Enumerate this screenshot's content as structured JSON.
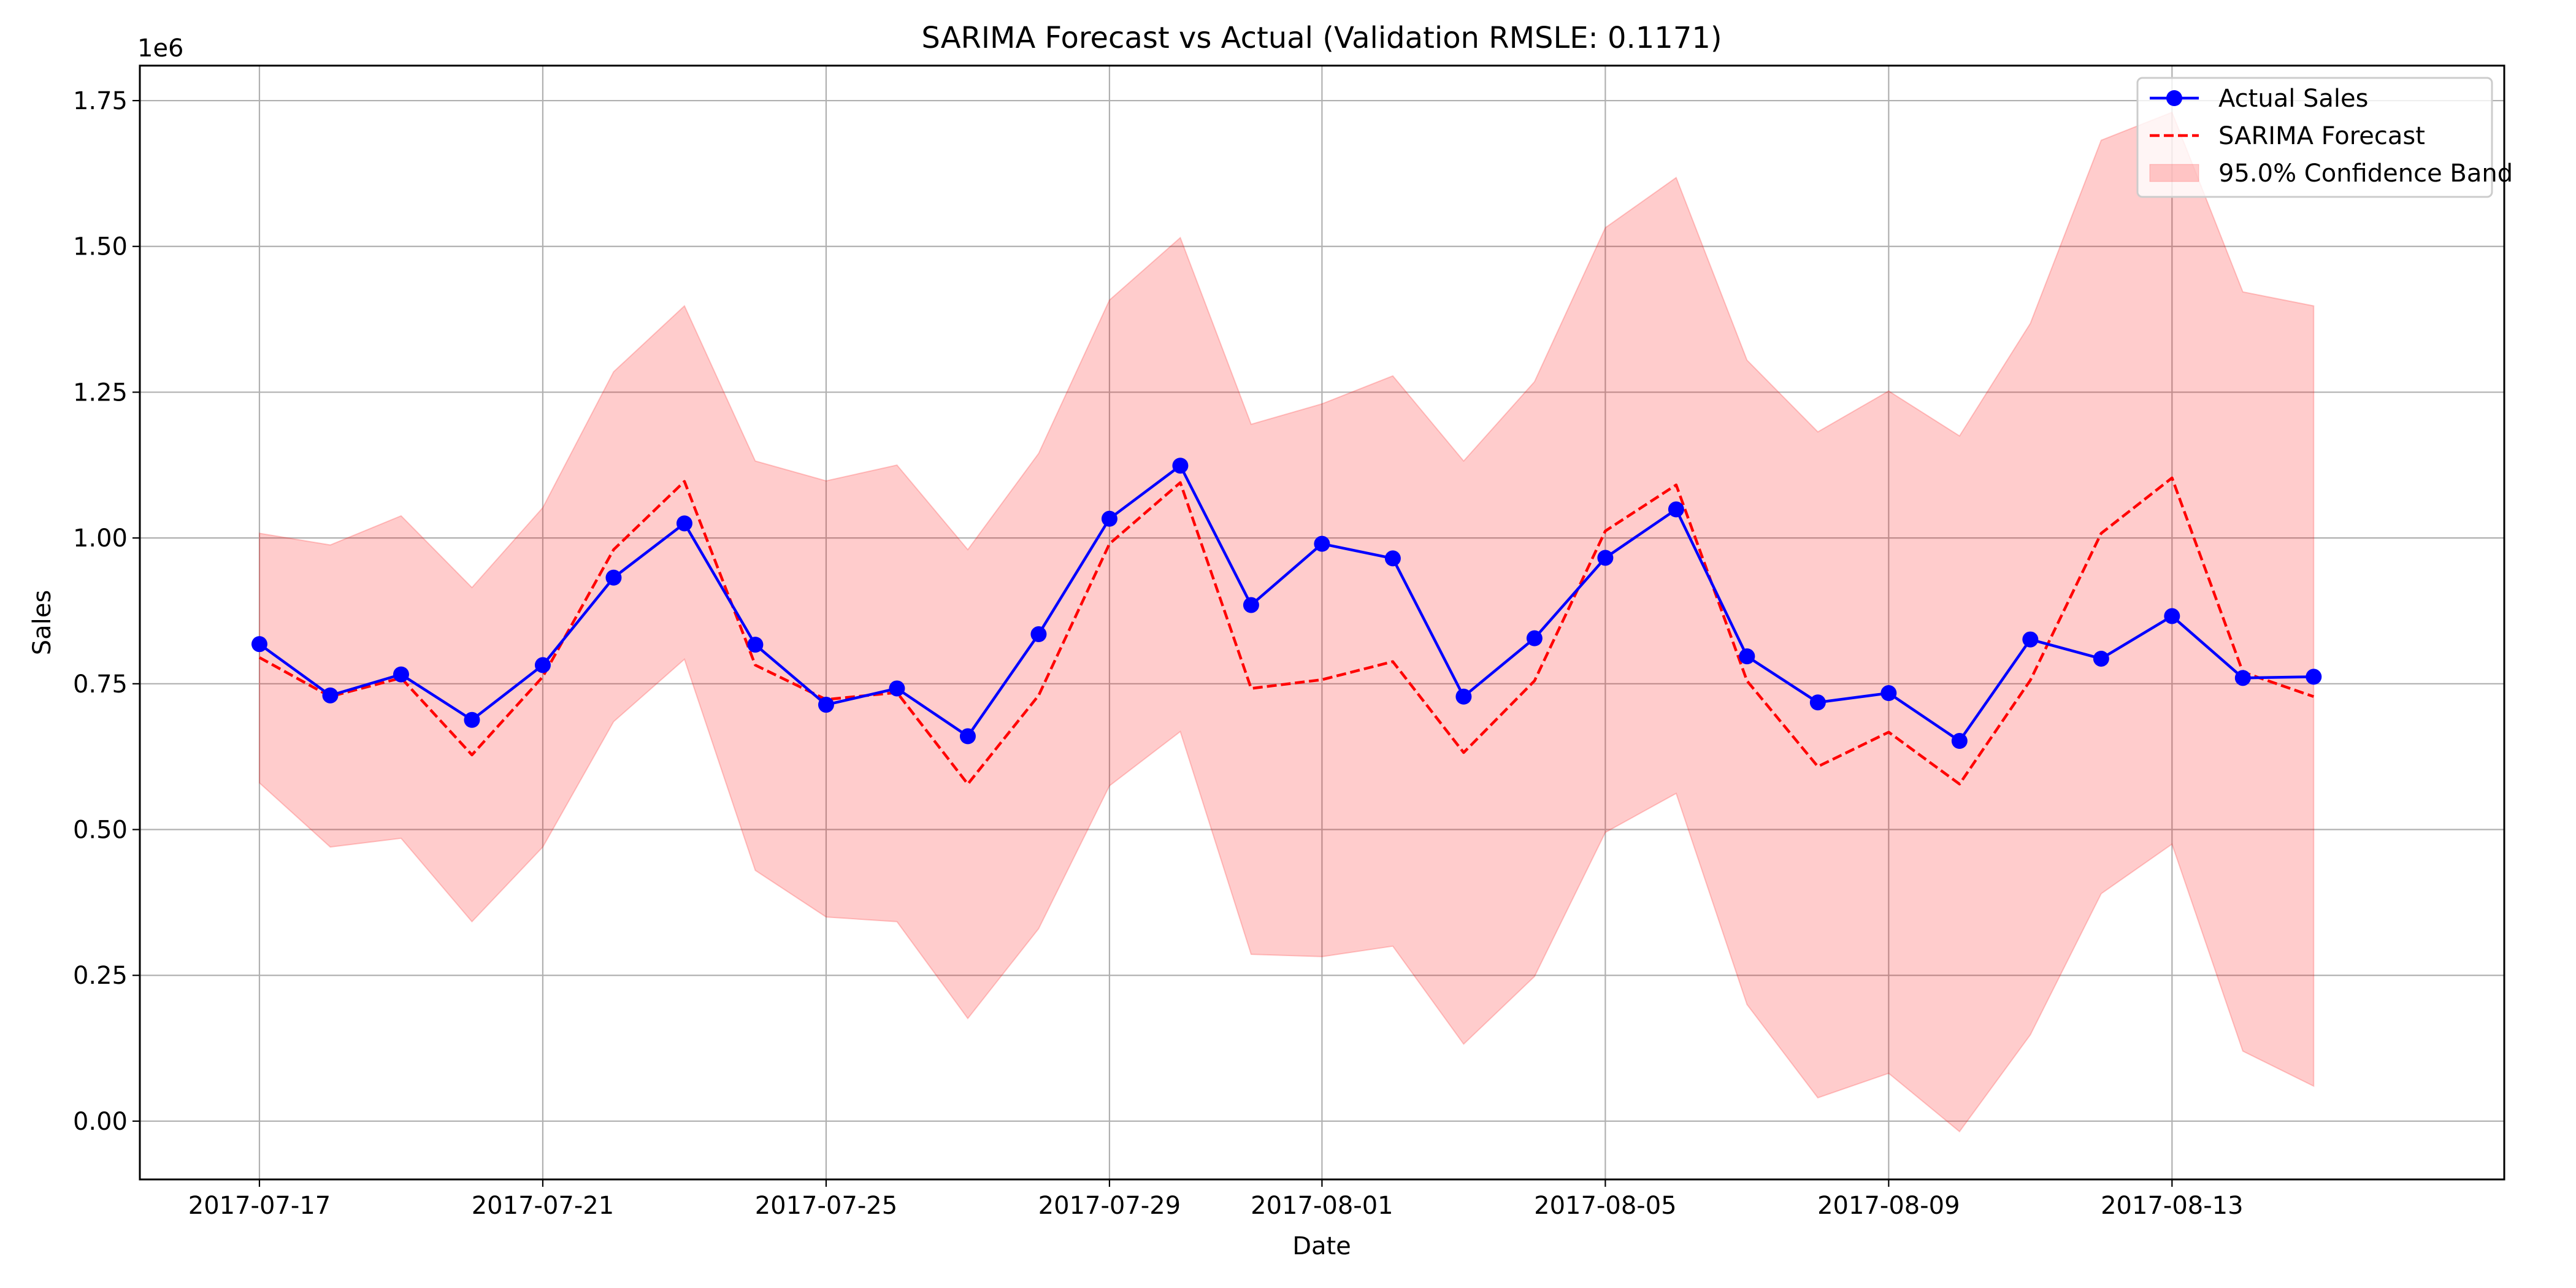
{
  "chart_data": {
    "type": "line",
    "title": "SARIMA Forecast vs Actual (Validation RMSLE: 0.1171)",
    "xlabel": "Date",
    "ylabel": "Sales",
    "y_offset_label": "1e6",
    "y_scale": 1000000,
    "ylim": [
      -0.1,
      1.81
    ],
    "xlim": [
      "2017-07-15T07:28:48",
      "2017-08-17T16:33:36"
    ],
    "grid": true,
    "legend_position": "top-right",
    "x": [
      "2017-07-17",
      "2017-07-18",
      "2017-07-19",
      "2017-07-20",
      "2017-07-21",
      "2017-07-22",
      "2017-07-23",
      "2017-07-24",
      "2017-07-25",
      "2017-07-26",
      "2017-07-27",
      "2017-07-28",
      "2017-07-29",
      "2017-07-30",
      "2017-07-31",
      "2017-08-01",
      "2017-08-02",
      "2017-08-03",
      "2017-08-04",
      "2017-08-05",
      "2017-08-06",
      "2017-08-07",
      "2017-08-08",
      "2017-08-09",
      "2017-08-10",
      "2017-08-11",
      "2017-08-12",
      "2017-08-13",
      "2017-08-14",
      "2017-08-15"
    ],
    "x_ticks": [
      "2017-07-17",
      "2017-07-21",
      "2017-07-25",
      "2017-07-29",
      "2017-08-01",
      "2017-08-05",
      "2017-08-09",
      "2017-08-13"
    ],
    "y_ticks": [
      "0.00",
      "0.25",
      "0.50",
      "0.75",
      "1.00",
      "1.25",
      "1.50",
      "1.75"
    ],
    "series": [
      {
        "name": "Actual Sales",
        "style": "line-marker",
        "color": "#0000ff",
        "values": [
          0.818,
          0.73,
          0.766,
          0.688,
          0.782,
          0.932,
          1.025,
          0.817,
          0.714,
          0.742,
          0.66,
          0.835,
          1.033,
          1.124,
          0.885,
          0.99,
          0.965,
          0.728,
          0.828,
          0.966,
          1.049,
          0.797,
          0.718,
          0.734,
          0.652,
          0.826,
          0.793,
          0.866,
          0.76,
          0.762
        ]
      },
      {
        "name": "SARIMA Forecast",
        "style": "dashed",
        "color": "#ff0000",
        "values": [
          0.795,
          0.728,
          0.76,
          0.628,
          0.762,
          0.98,
          1.097,
          0.782,
          0.723,
          0.735,
          0.578,
          0.73,
          0.99,
          1.095,
          0.742,
          0.757,
          0.788,
          0.632,
          0.755,
          1.012,
          1.091,
          0.755,
          0.608,
          0.667,
          0.578,
          0.756,
          1.008,
          1.103,
          0.77,
          0.728
        ]
      },
      {
        "name": "95.0% Confidence Band",
        "style": "band",
        "color": "#ff0000",
        "opacity": 0.2,
        "lower": [
          0.58,
          0.47,
          0.485,
          0.342,
          0.47,
          0.685,
          0.792,
          0.43,
          0.35,
          0.342,
          0.176,
          0.33,
          0.575,
          0.668,
          0.286,
          0.282,
          0.3,
          0.132,
          0.248,
          0.495,
          0.562,
          0.2,
          0.04,
          0.082,
          -0.018,
          0.148,
          0.39,
          0.475,
          0.12,
          0.06
        ],
        "upper": [
          1.008,
          0.988,
          1.038,
          0.915,
          1.052,
          1.285,
          1.398,
          1.132,
          1.098,
          1.125,
          0.98,
          1.145,
          1.408,
          1.515,
          1.195,
          1.23,
          1.278,
          1.132,
          1.268,
          1.532,
          1.618,
          1.305,
          1.182,
          1.252,
          1.175,
          1.368,
          1.682,
          1.73,
          1.422,
          1.398
        ]
      }
    ]
  }
}
